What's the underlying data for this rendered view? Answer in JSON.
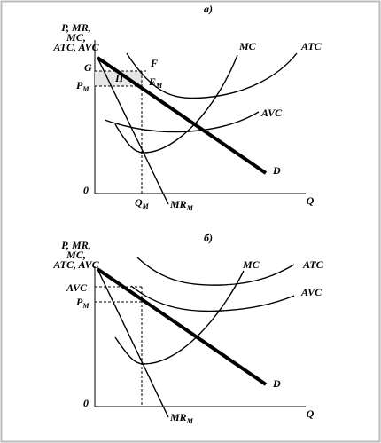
{
  "panels": [
    {
      "title": "а)",
      "y_axis_label": [
        "P, MR,",
        "MC,",
        "ATC, AVC"
      ],
      "origin": "0",
      "x_axis_label": "Q",
      "y_labels": [
        {
          "main": "G",
          "sub": ""
        },
        {
          "main": "P",
          "sub": "M"
        }
      ],
      "x_labels": [
        {
          "main": "Q",
          "sub": "M"
        }
      ],
      "points": [
        {
          "main": "П",
          "sub": ""
        },
        {
          "main": "F",
          "sub": ""
        },
        {
          "main": "E",
          "sub": "M"
        }
      ],
      "curves": [
        {
          "main": "MC",
          "sub": ""
        },
        {
          "main": "ATC",
          "sub": ""
        },
        {
          "main": "AVC",
          "sub": ""
        },
        {
          "main": "D",
          "sub": ""
        },
        {
          "main": "MR",
          "sub": "M"
        }
      ]
    },
    {
      "title": "б)",
      "y_axis_label": [
        "P, MR,",
        "MC,",
        "ATC, AVC"
      ],
      "origin": "0",
      "x_axis_label": "Q",
      "y_labels": [
        {
          "main": "AVC",
          "sub": ""
        },
        {
          "main": "P",
          "sub": "M"
        }
      ],
      "curves": [
        {
          "main": "MC",
          "sub": ""
        },
        {
          "main": "ATC",
          "sub": ""
        },
        {
          "main": "AVC",
          "sub": ""
        },
        {
          "main": "D",
          "sub": ""
        },
        {
          "main": "MR",
          "sub": "M"
        }
      ]
    }
  ]
}
